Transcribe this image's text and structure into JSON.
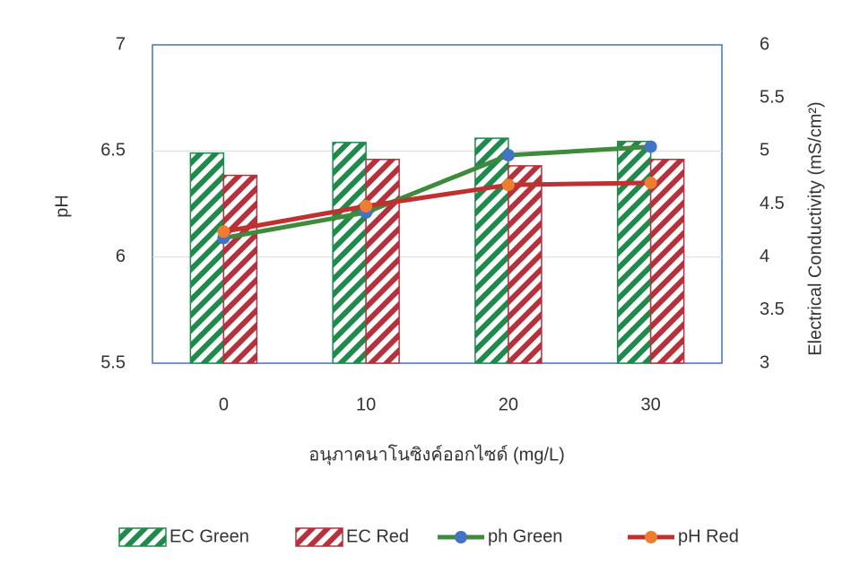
{
  "chart_data": {
    "type": "combo",
    "categories": [
      "0",
      "10",
      "20",
      "30"
    ],
    "x_label": "อนุภาคนาโนซิงค์ออกไซด์ (mg/L)",
    "y_label": "pH",
    "y2_label": "Electrical Conductivity (mS/cm²)",
    "ylim": [
      5.5,
      7
    ],
    "yticks": [
      5.5,
      6,
      6.5,
      7
    ],
    "y2lim": [
      3,
      6
    ],
    "y2ticks": [
      3,
      3.5,
      4,
      4.5,
      5,
      5.5,
      6
    ],
    "grid": true,
    "legend": "bottom",
    "series": [
      {
        "name": "EC Green",
        "type": "bar",
        "axis": "y2",
        "color": "#1f8a4c",
        "hatch": true,
        "values": [
          4.98,
          5.08,
          5.12,
          5.09
        ]
      },
      {
        "name": "EC Red",
        "type": "bar",
        "axis": "y2",
        "color": "#b5313c",
        "hatch": true,
        "values": [
          4.77,
          4.92,
          4.86,
          4.92
        ]
      },
      {
        "name": "ph Green",
        "type": "line",
        "color": "#3f8a3d",
        "marker_color": "#4472c4",
        "values": [
          6.09,
          6.21,
          6.48,
          6.52
        ]
      },
      {
        "name": "pH Red",
        "type": "line",
        "color": "#c0302f",
        "marker_color": "#ed7d31",
        "values": [
          6.12,
          6.24,
          6.34,
          6.35
        ]
      }
    ]
  }
}
